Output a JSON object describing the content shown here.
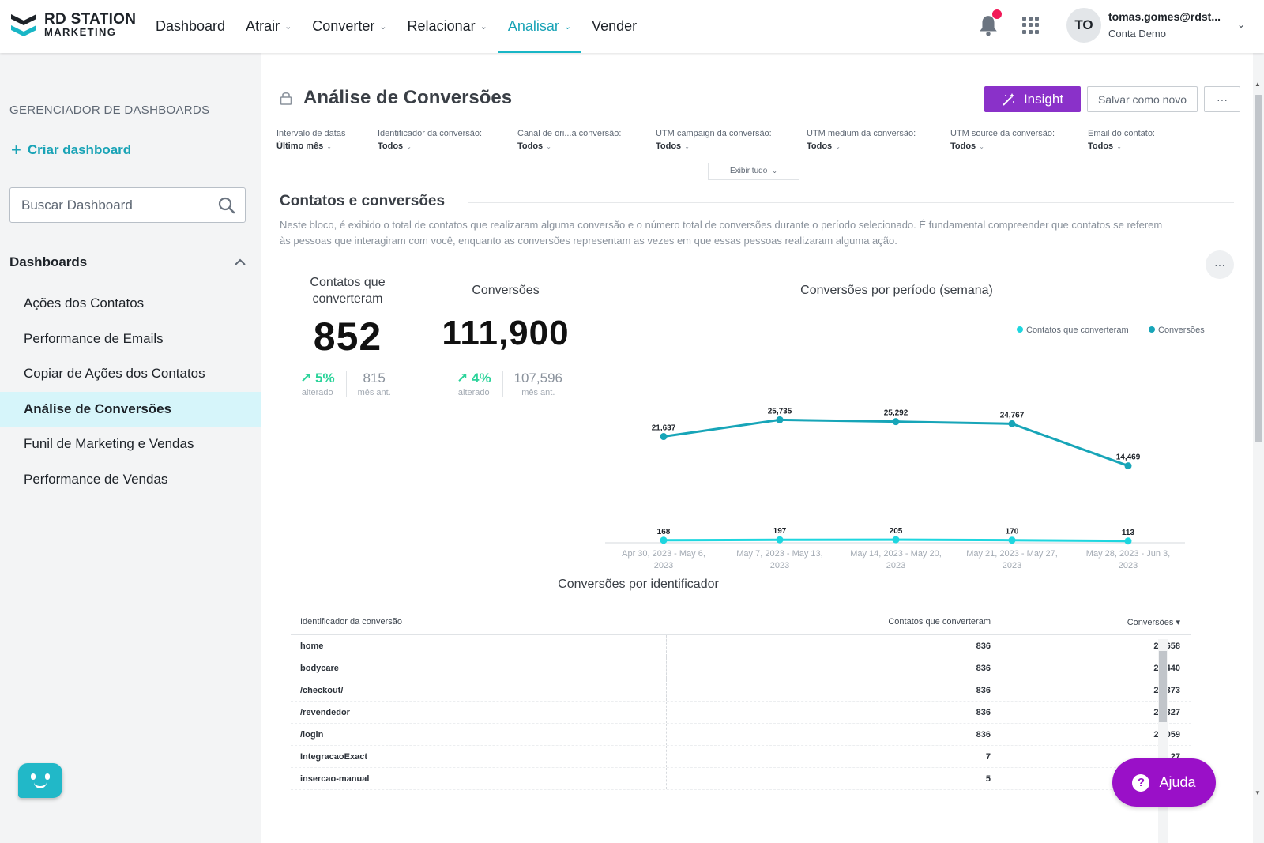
{
  "brand": {
    "line1": "RD STATION",
    "line2": "MARKETING"
  },
  "nav": [
    {
      "label": "Dashboard",
      "has_menu": false,
      "active": false
    },
    {
      "label": "Atrair",
      "has_menu": true,
      "active": false
    },
    {
      "label": "Converter",
      "has_menu": true,
      "active": false
    },
    {
      "label": "Relacionar",
      "has_menu": true,
      "active": false
    },
    {
      "label": "Analisar",
      "has_menu": true,
      "active": true
    },
    {
      "label": "Vender",
      "has_menu": false,
      "active": false
    }
  ],
  "user": {
    "initials": "TO",
    "email": "tomas.gomes@rdst...",
    "account": "Conta Demo"
  },
  "sidebar": {
    "heading": "GERENCIADOR DE DASHBOARDS",
    "create_label": "Criar dashboard",
    "search_placeholder": "Buscar Dashboard",
    "section_label": "Dashboards",
    "items": [
      {
        "label": "Ações dos Contatos",
        "active": false
      },
      {
        "label": "Performance de Emails",
        "active": false
      },
      {
        "label": "Copiar de Ações dos Contatos",
        "active": false
      },
      {
        "label": "Análise de Conversões",
        "active": true
      },
      {
        "label": "Funil de Marketing e Vendas",
        "active": false
      },
      {
        "label": "Performance de Vendas",
        "active": false
      }
    ]
  },
  "page": {
    "title": "Análise de Conversões",
    "insight_label": "Insight",
    "save_label": "Salvar como novo",
    "more_label": "···"
  },
  "filters": [
    {
      "label": "Intervalo de datas",
      "value": "Último mês"
    },
    {
      "label": "Identificador da conversão:",
      "value": "Todos"
    },
    {
      "label": "Canal de ori...a conversão:",
      "value": "Todos"
    },
    {
      "label": "UTM campaign da conversão:",
      "value": "Todos"
    },
    {
      "label": "UTM medium da conversão:",
      "value": "Todos"
    },
    {
      "label": "UTM source da conversão:",
      "value": "Todos"
    },
    {
      "label": "Email do contato:",
      "value": "Todos"
    }
  ],
  "show_all_label": "Exibir tudo",
  "section": {
    "title": "Contatos e conversões",
    "description": "Neste bloco, é exibido o total de contatos que realizaram alguma conversão e o número total de conversões durante o período selecionado. É fundamental compreender que contatos se referem às pessoas que interagiram com você, enquanto as conversões representam as vezes em que essas pessoas realizaram alguma ação."
  },
  "kpis": [
    {
      "label_line1": "Contatos que",
      "label_line2": "converteram",
      "value": "852",
      "change": "5%",
      "change_label": "alterado",
      "previous": "815",
      "previous_label": "mês ant."
    },
    {
      "label_line1": "Conversões",
      "label_line2": "",
      "value": "111,900",
      "change": "4%",
      "change_label": "alterado",
      "previous": "107,596",
      "previous_label": "mês ant."
    }
  ],
  "chart_data": {
    "type": "line",
    "title": "Conversões por período (semana)",
    "categories": [
      [
        "Apr 30, 2023 - May 6,",
        "2023"
      ],
      [
        "May 7, 2023 - May 13,",
        "2023"
      ],
      [
        "May 14, 2023 - May 20,",
        "2023"
      ],
      [
        "May 21, 2023 - May 27,",
        "2023"
      ],
      [
        "May 28, 2023 - Jun 3,",
        "2023"
      ]
    ],
    "series": [
      {
        "name": "Contatos que converteram",
        "color": "#1ed6df",
        "values": [
          168,
          197,
          205,
          170,
          113
        ],
        "labels": [
          "168",
          "197",
          "205",
          "170",
          "113"
        ]
      },
      {
        "name": "Conversões",
        "color": "#17a5b8",
        "values": [
          21637,
          25735,
          25292,
          24767,
          14469
        ],
        "labels": [
          "21,637",
          "25,735",
          "25,292",
          "24,767",
          "14,469"
        ]
      }
    ],
    "legend": "top-right",
    "grid": false
  },
  "table": {
    "title": "Conversões por identificador",
    "headers": [
      "Identificador da conversão",
      "Contatos que converteram",
      "Conversões ▾"
    ],
    "rows": [
      [
        "home",
        "836",
        "22,658"
      ],
      [
        "bodycare",
        "836",
        "22,440"
      ],
      [
        "/checkout/",
        "836",
        "22,373"
      ],
      [
        "/revendedor",
        "836",
        "22,327"
      ],
      [
        "/login",
        "836",
        "22,059"
      ],
      [
        "IntegracaoExact",
        "7",
        "27"
      ],
      [
        "insercao-manual",
        "5",
        ""
      ]
    ]
  },
  "help_label": "Ajuda",
  "colors": {
    "accent": "#19a3b6",
    "insight": "#8a31c9",
    "help": "#9a10c8",
    "positive": "#2bd39a"
  }
}
